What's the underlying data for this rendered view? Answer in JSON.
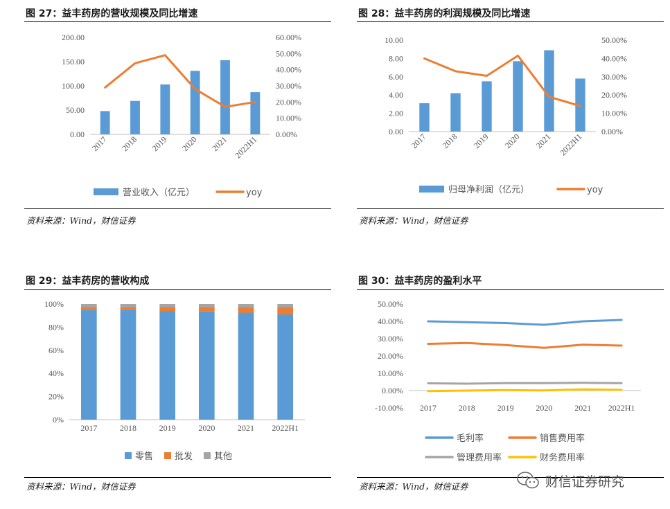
{
  "watermark": {
    "text": "财信证券研究",
    "icon": "wechat-icon"
  },
  "colors": {
    "blue": "#5B9BD5",
    "orange": "#ED7D31",
    "gray": "#A5A5A5",
    "yellow": "#FFC000",
    "frame": "#000000"
  },
  "panels": [
    {
      "title": "图 27：益丰药房的营收规模及同比增速",
      "source": "资料来源：Wind，财信证券",
      "chart_data": {
        "type": "bar",
        "categories": [
          "2017",
          "2018",
          "2019",
          "2020",
          "2021",
          "2022H1"
        ],
        "series": [
          {
            "name": "营业收入（亿元）",
            "type": "bar",
            "axis": "left",
            "color": "#5B9BD5",
            "values": [
              48,
              69,
              103,
              131,
              153,
              87
            ]
          },
          {
            "name": "yoy",
            "type": "line",
            "axis": "right",
            "color": "#ED7D31",
            "values": [
              29,
              44,
              49,
              28,
              17,
              20
            ]
          }
        ],
        "left_ticks": [
          "0.00",
          "50.00",
          "100.00",
          "150.00",
          "200.00"
        ],
        "right_ticks": [
          "0.00%",
          "10.00%",
          "20.00%",
          "30.00%",
          "40.00%",
          "50.00%",
          "60.00%"
        ],
        "ylim": [
          0,
          200
        ],
        "y2lim": [
          0,
          60
        ],
        "xlabel_rotated": true,
        "legend_position": "bottom"
      }
    },
    {
      "title": "图 28：益丰药房的利润规模及同比增速",
      "source": "资料来源：Wind，财信证券",
      "chart_data": {
        "type": "bar",
        "categories": [
          "2017",
          "2018",
          "2019",
          "2020",
          "2021",
          "2022H1"
        ],
        "series": [
          {
            "name": "归母净利润（亿元）",
            "type": "bar",
            "axis": "left",
            "color": "#5B9BD5",
            "values": [
              3.1,
              4.2,
              5.5,
              7.7,
              8.9,
              5.8
            ]
          },
          {
            "name": "yoy",
            "type": "line",
            "axis": "right",
            "color": "#ED7D31",
            "values": [
              40,
              33,
              30.5,
              41.5,
              19,
              14
            ]
          }
        ],
        "left_ticks": [
          "0.00",
          "2.00",
          "4.00",
          "6.00",
          "8.00",
          "10.00"
        ],
        "right_ticks": [
          "0.00%",
          "10.00%",
          "20.00%",
          "30.00%",
          "40.00%",
          "50.00%"
        ],
        "ylim": [
          0,
          10
        ],
        "y2lim": [
          0,
          50
        ],
        "xlabel_rotated": true,
        "legend_position": "bottom"
      }
    },
    {
      "title": "图 29：益丰药房的营收构成",
      "source": "资料来源：Wind，财信证券",
      "chart_data": {
        "type": "bar",
        "stacked": true,
        "categories": [
          "2017",
          "2018",
          "2019",
          "2020",
          "2021",
          "2022H1"
        ],
        "series": [
          {
            "name": "零售",
            "color": "#5B9BD5",
            "values": [
              95,
              95,
              94,
              93.5,
              92.5,
              91
            ]
          },
          {
            "name": "批发",
            "color": "#ED7D31",
            "values": [
              2.5,
              2,
              3.5,
              4,
              4.5,
              6
            ]
          },
          {
            "name": "其他",
            "color": "#A5A5A5",
            "values": [
              2.5,
              3,
              2.5,
              2.5,
              3,
              3
            ]
          }
        ],
        "left_ticks": [
          "0%",
          "20%",
          "40%",
          "60%",
          "80%",
          "100%"
        ],
        "ylim": [
          0,
          100
        ],
        "xlabel_rotated": false,
        "legend_position": "bottom"
      }
    },
    {
      "title": "图 30：益丰药房的盈利水平",
      "source": "资料来源：Wind，财信证券",
      "chart_data": {
        "type": "line",
        "categories": [
          "2017",
          "2018",
          "2019",
          "2020",
          "2021",
          "2022H1"
        ],
        "series": [
          {
            "name": "毛利率",
            "color": "#5B9BD5",
            "values": [
              40,
              39.5,
              39,
              38,
              40,
              40.8
            ]
          },
          {
            "name": "销售费用率",
            "color": "#ED7D31",
            "values": [
              27,
              27.5,
              26.3,
              24.7,
              26.5,
              26
            ]
          },
          {
            "name": "管理费用率",
            "color": "#A5A5A5",
            "values": [
              4.2,
              4,
              4.3,
              4.3,
              4.5,
              4.3
            ]
          },
          {
            "name": "财务费用率",
            "color": "#FFC000",
            "values": [
              -0.3,
              0,
              0.3,
              0.1,
              0.7,
              0.4
            ]
          }
        ],
        "left_ticks": [
          "-10.00%",
          "0.00%",
          "10.00%",
          "20.00%",
          "30.00%",
          "40.00%",
          "50.00%"
        ],
        "ylim": [
          -10,
          50
        ],
        "xlabel_rotated": false,
        "legend_position": "bottom"
      }
    }
  ]
}
